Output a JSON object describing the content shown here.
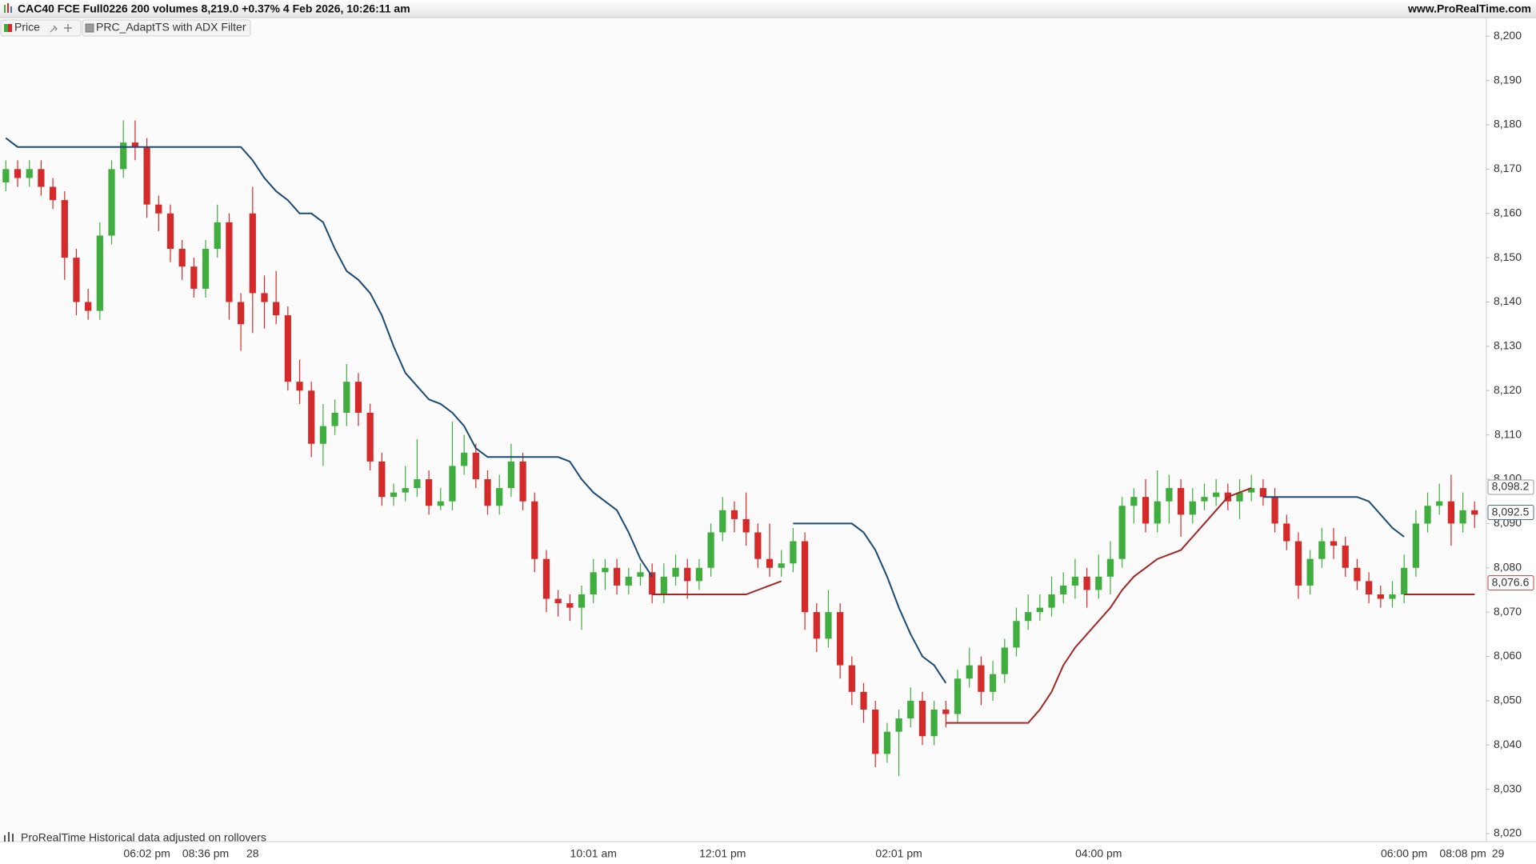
{
  "chart_data": {
    "type": "candlestick",
    "title": "CAC40 FCE Full0226 200 volumes 8,219.0 +0.37% 4 Feb 2026, 10:26:11 am",
    "site": "www.ProRealTime.com",
    "legend": [
      "Price",
      "PRC_AdaptTS with ADX Filter"
    ],
    "footnote": "ProRealTime Historical data adjusted on rollovers",
    "up_color": "#3fae3f",
    "down_color": "#d42a2a",
    "categories": [
      null,
      null,
      null,
      null,
      null,
      null,
      null,
      null,
      null,
      null,
      null,
      null,
      "06:02 pm",
      null,
      null,
      null,
      null,
      "08:36 pm",
      null,
      null,
      null,
      "28",
      null,
      null,
      null,
      null,
      null,
      null,
      null,
      null,
      null,
      null,
      null,
      null,
      null,
      null,
      null,
      null,
      null,
      null,
      null,
      null,
      null,
      null,
      null,
      null,
      null,
      null,
      null,
      null,
      "10:01 am",
      null,
      null,
      null,
      null,
      null,
      null,
      null,
      null,
      null,
      null,
      "12:01 pm",
      null,
      null,
      null,
      null,
      null,
      null,
      null,
      null,
      null,
      null,
      null,
      null,
      null,
      null,
      "02:01 pm",
      null,
      null,
      null,
      null,
      null,
      null,
      null,
      null,
      null,
      null,
      null,
      null,
      null,
      null,
      null,
      null,
      "04:00 pm",
      null,
      null,
      null,
      null,
      null,
      null,
      null,
      null,
      null,
      null,
      null,
      null,
      null,
      null,
      null,
      null,
      null,
      null,
      null,
      null,
      null,
      null,
      null,
      null,
      null,
      "06:00 pm",
      null,
      null,
      null,
      null,
      "08:08 pm",
      null,
      null,
      "29"
    ],
    "open": [
      8167,
      8170,
      8168,
      8170,
      8166,
      8163,
      8150,
      8140,
      8138,
      8155,
      8170,
      8176,
      8175,
      8162,
      8160,
      8152,
      8148,
      8143,
      8152,
      8158,
      8140,
      8160,
      8142,
      8140,
      8137,
      8122,
      8120,
      8108,
      8112,
      8115,
      8122,
      8115,
      8104,
      8096,
      8097,
      8098,
      8100,
      8094,
      8095,
      8103,
      8106,
      8100,
      8094,
      8098,
      8104,
      8095,
      8082,
      8073,
      8072,
      8071,
      8074,
      8079,
      8080,
      8076,
      8078,
      8079,
      8074,
      8078,
      8080,
      8077,
      8080,
      8088,
      8093,
      8091,
      8088,
      8082,
      8080,
      8081,
      8086,
      8070,
      8064,
      8070,
      8058,
      8052,
      8048,
      8038,
      8043,
      8046,
      8050,
      8042,
      8048,
      8047,
      8055,
      8058,
      8052,
      8056,
      8062,
      8068,
      8070,
      8071,
      8074,
      8076,
      8078,
      8075,
      8078,
      8082,
      8094,
      8096,
      8090,
      8095,
      8098,
      8092,
      8095,
      8096,
      8097,
      8095,
      8097,
      8098,
      8096,
      8090,
      8086,
      8076,
      8082,
      8086,
      8085,
      8080,
      8077,
      8074,
      8073,
      8074,
      8080,
      8090,
      8094,
      8095,
      8090,
      8093,
      null,
      null
    ],
    "high": [
      8172,
      8172,
      8172,
      8172,
      8168,
      8165,
      8152,
      8143,
      8158,
      8172,
      8181,
      8181,
      8177,
      8164,
      8162,
      8154,
      8150,
      8154,
      8162,
      8160,
      8142,
      8166,
      8146,
      8147,
      8139,
      8127,
      8122,
      8117,
      8118,
      8126,
      8124,
      8117,
      8106,
      8099,
      8103,
      8109,
      8102,
      8098,
      8113,
      8110,
      8108,
      8102,
      8101,
      8108,
      8106,
      8097,
      8084,
      8075,
      8074,
      8076,
      8082,
      8082,
      8082,
      8080,
      8081,
      8081,
      8081,
      8083,
      8082,
      8082,
      8090,
      8096,
      8095,
      8097,
      8090,
      8090,
      8084,
      8089,
      8088,
      8072,
      8075,
      8072,
      8060,
      8054,
      8050,
      8045,
      8048,
      8053,
      8052,
      8050,
      8050,
      8057,
      8062,
      8060,
      8059,
      8064,
      8071,
      8074,
      8074,
      8078,
      8079,
      8082,
      8080,
      8083,
      8086,
      8096,
      8098,
      8100,
      8102,
      8101,
      8100,
      8098,
      8099,
      8100,
      8099,
      8100,
      8101,
      8100,
      8098,
      8092,
      8088,
      8084,
      8089,
      8089,
      8087,
      8082,
      8079,
      8076,
      8077,
      8083,
      8093,
      8097,
      8099,
      8101,
      8097,
      8095,
      null,
      null
    ],
    "low": [
      8165,
      8166,
      8166,
      8164,
      8161,
      8145,
      8137,
      8136,
      8136,
      8153,
      8168,
      8172,
      8159,
      8156,
      8149,
      8145,
      8141,
      8141,
      8150,
      8136,
      8129,
      8133,
      8134,
      8135,
      8120,
      8117,
      8105,
      8103,
      8110,
      8112,
      8112,
      8102,
      8094,
      8094,
      8095,
      8096,
      8092,
      8093,
      8093,
      8101,
      8098,
      8092,
      8092,
      8096,
      8093,
      8079,
      8070,
      8069,
      8068,
      8066,
      8072,
      8075,
      8074,
      8074,
      8076,
      8072,
      8072,
      8076,
      8073,
      8075,
      8078,
      8086,
      8088,
      8085,
      8080,
      8078,
      8078,
      8079,
      8066,
      8061,
      8062,
      8055,
      8049,
      8045,
      8035,
      8036,
      8033,
      8044,
      8040,
      8040,
      8044,
      8045,
      8053,
      8049,
      8050,
      8054,
      8060,
      8066,
      8068,
      8069,
      8072,
      8073,
      8071,
      8073,
      8074,
      8080,
      8090,
      8088,
      8088,
      8090,
      8087,
      8090,
      8093,
      8094,
      8093,
      8091,
      8095,
      8094,
      8088,
      8084,
      8073,
      8074,
      8080,
      8082,
      8078,
      8075,
      8072,
      8071,
      8071,
      8072,
      8078,
      8088,
      8092,
      8085,
      8088,
      8089,
      null,
      null
    ],
    "close": [
      8170,
      8168,
      8170,
      8166,
      8163,
      8150,
      8140,
      8138,
      8155,
      8170,
      8176,
      8175,
      8162,
      8160,
      8152,
      8148,
      8143,
      8152,
      8158,
      8140,
      8135,
      8142,
      8140,
      8137,
      8122,
      8120,
      8108,
      8112,
      8115,
      8122,
      8115,
      8104,
      8096,
      8097,
      8098,
      8100,
      8094,
      8095,
      8103,
      8106,
      8100,
      8094,
      8098,
      8104,
      8095,
      8082,
      8073,
      8072,
      8071,
      8074,
      8079,
      8080,
      8076,
      8078,
      8079,
      8074,
      8078,
      8080,
      8077,
      8080,
      8088,
      8093,
      8091,
      8088,
      8082,
      8080,
      8081,
      8086,
      8070,
      8064,
      8070,
      8058,
      8052,
      8048,
      8038,
      8043,
      8046,
      8050,
      8042,
      8048,
      8047,
      8055,
      8058,
      8052,
      8056,
      8062,
      8068,
      8070,
      8071,
      8074,
      8076,
      8078,
      8075,
      8078,
      8082,
      8094,
      8096,
      8090,
      8095,
      8098,
      8092,
      8095,
      8096,
      8097,
      8095,
      8097,
      8098,
      8096,
      8090,
      8086,
      8076,
      8082,
      8086,
      8085,
      8080,
      8077,
      8074,
      8073,
      8074,
      8080,
      8090,
      8094,
      8095,
      8090,
      8093,
      8092,
      null,
      null
    ],
    "lines": [
      {
        "color": "#1b4a72",
        "values": [
          8177,
          8175,
          8175,
          8175,
          8175,
          8175,
          8175,
          8175,
          8175,
          8175,
          8175,
          8175,
          8175,
          8175,
          8175,
          8175,
          8175,
          8175,
          8175,
          8175,
          8175,
          8172,
          8168,
          8165,
          8163,
          8160,
          8160,
          8158,
          8152,
          8147,
          8145,
          8142,
          8137,
          8130,
          8124,
          8121,
          8118,
          8117,
          8115,
          8112,
          8107,
          8105,
          8105,
          8105,
          8105,
          8105,
          8105,
          8105,
          8104,
          8100,
          8097,
          8095,
          8093,
          8088,
          8082,
          8078,
          null,
          null,
          null,
          null,
          null,
          null,
          null,
          null,
          null,
          null,
          null,
          8090,
          8090,
          8090,
          8090,
          8090,
          8090,
          8088,
          8084,
          8078,
          8071,
          8065,
          8060,
          8058,
          8054,
          null,
          null,
          null,
          null,
          null,
          null,
          null,
          null,
          null,
          null,
          null,
          null,
          null,
          null,
          null,
          null,
          null,
          null,
          null,
          null,
          null,
          null,
          null,
          null,
          null,
          null,
          8096,
          8096,
          8096,
          8096,
          8096,
          8096,
          8096,
          8096,
          8096,
          8095,
          8092,
          8089,
          8087,
          null,
          null,
          null,
          null,
          null,
          null,
          null,
          null
        ]
      },
      {
        "color": "#a32626",
        "values": [
          null,
          null,
          null,
          null,
          null,
          null,
          null,
          null,
          null,
          null,
          null,
          null,
          null,
          null,
          null,
          null,
          null,
          null,
          null,
          null,
          null,
          null,
          null,
          null,
          null,
          null,
          null,
          null,
          null,
          null,
          null,
          null,
          null,
          null,
          null,
          null,
          null,
          null,
          null,
          null,
          null,
          null,
          null,
          null,
          null,
          null,
          null,
          null,
          null,
          null,
          null,
          null,
          null,
          null,
          null,
          8074,
          8074,
          8074,
          8074,
          8074,
          8074,
          8074,
          8074,
          8074,
          8075,
          8076,
          8077,
          null,
          null,
          null,
          null,
          null,
          null,
          null,
          null,
          null,
          null,
          null,
          null,
          null,
          8045,
          8045,
          8045,
          8045,
          8045,
          8045,
          8045,
          8045,
          8048,
          8052,
          8058,
          8062,
          8065,
          8068,
          8071,
          8075,
          8078,
          8080,
          8082,
          8083,
          8084,
          8087,
          8090,
          8093,
          8096,
          8097,
          8098,
          null,
          null,
          null,
          null,
          null,
          null,
          null,
          null,
          null,
          null,
          null,
          null,
          8074,
          8074,
          8074,
          8074,
          8074,
          8074,
          8074,
          null,
          null
        ]
      }
    ],
    "price_labels": {
      "values": [
        8098.2,
        8092.5,
        8076.6
      ],
      "value_labels": [
        "8,098.2",
        "8,092.5",
        "8,076.6"
      ],
      "colors": [
        "#9a9a9a",
        "#4a6f8f",
        "#c04040"
      ]
    },
    "ylim": [
      8018.2,
      8204.2
    ],
    "yticks": [
      {
        "value": 8020,
        "label": "8,020"
      },
      {
        "value": 8030,
        "label": "8,030"
      },
      {
        "value": 8040,
        "label": "8,040"
      },
      {
        "value": 8050,
        "label": "8,050"
      },
      {
        "value": 8060,
        "label": "8,060"
      },
      {
        "value": 8070,
        "label": "8,070"
      },
      {
        "value": 8080,
        "label": "8,080"
      },
      {
        "value": 8090,
        "label": "8,090"
      },
      {
        "value": 8100,
        "label": "8,100"
      },
      {
        "value": 8110,
        "label": "8,110"
      },
      {
        "value": 8120,
        "label": "8,120"
      },
      {
        "value": 8130,
        "label": "8,130"
      },
      {
        "value": 8140,
        "label": "8,140"
      },
      {
        "value": 8150,
        "label": "8,150"
      },
      {
        "value": 8160,
        "label": "8,160"
      },
      {
        "value": 8170,
        "label": "8,170"
      },
      {
        "value": 8180,
        "label": "8,180"
      },
      {
        "value": 8190,
        "label": "8,190"
      },
      {
        "value": 8200,
        "label": "8,200"
      }
    ]
  }
}
